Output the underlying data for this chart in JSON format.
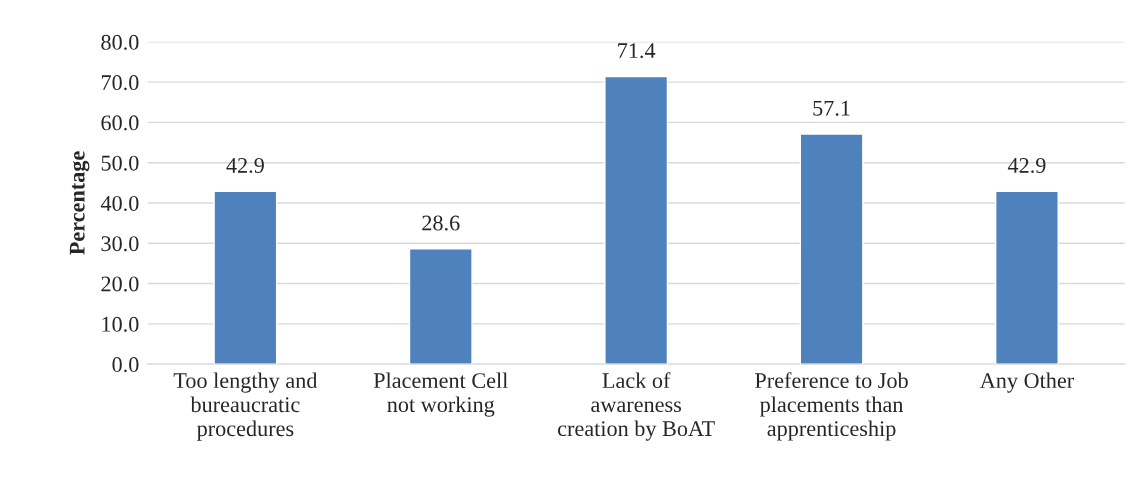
{
  "chart_data": {
    "type": "bar",
    "ylabel": "Percentage",
    "categories": [
      "Too lengthy and\nbureaucratic\nprocedures",
      "Placement Cell\nnot working",
      "Lack of\nawareness\ncreation by BoAT",
      "Preference to Job\nplacements than\napprenticeship",
      "Any Other"
    ],
    "values": [
      42.9,
      28.6,
      71.4,
      57.1,
      42.9
    ],
    "color": "#4f81bd",
    "ylim": [
      0,
      80
    ],
    "yticks": [
      {
        "value": 0,
        "label": "0.0"
      },
      {
        "value": 10,
        "label": "10.0"
      },
      {
        "value": 20,
        "label": "20.0"
      },
      {
        "value": 30,
        "label": "30.0"
      },
      {
        "value": 40,
        "label": "40.0"
      },
      {
        "value": 50,
        "label": "50.0"
      },
      {
        "value": 60,
        "label": "60.0"
      },
      {
        "value": 70,
        "label": "70.0"
      },
      {
        "value": 80,
        "label": "80.0"
      }
    ],
    "grid": "y",
    "data_labels": true
  }
}
